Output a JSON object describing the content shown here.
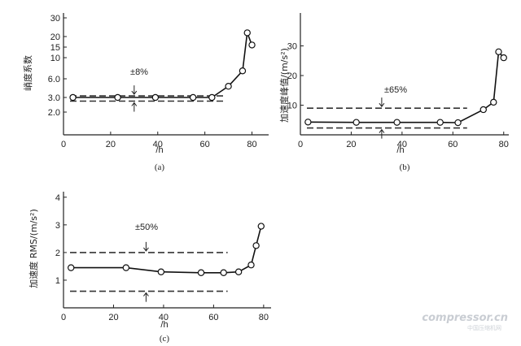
{
  "chart_data": [
    {
      "type": "line",
      "panel": "a",
      "caption": "(a)",
      "ylabel": "峭度系数",
      "xlabel": "/h",
      "xlim": [
        0,
        85
      ],
      "ylim": [
        0,
        30
      ],
      "xticks": [
        0,
        20,
        40,
        60,
        80
      ],
      "yticks": [
        2.0,
        3.0,
        6.0,
        10,
        15,
        20,
        30
      ],
      "ytick_labels": [
        "2.0",
        "3.0",
        "6.0",
        "10",
        "15",
        "20",
        "30"
      ],
      "series": [
        {
          "x": [
            4,
            23,
            39,
            55,
            63,
            70,
            76,
            78,
            80
          ],
          "y": [
            3.0,
            3.0,
            3.0,
            3.0,
            3.0,
            4.8,
            7.5,
            22,
            16
          ]
        }
      ],
      "bands": [
        3.25,
        2.75
      ],
      "annotation": "±8%",
      "arrow_x": 30
    },
    {
      "type": "line",
      "panel": "b",
      "caption": "(b)",
      "ylabel": "加速度峰值/(m/s²)",
      "xlabel": "/h",
      "xlim": [
        0,
        82
      ],
      "ylim": [
        0,
        40
      ],
      "xticks": [
        0,
        20,
        40,
        60,
        80
      ],
      "yticks": [
        10,
        20,
        30
      ],
      "ytick_labels": [
        "10",
        "20",
        "30"
      ],
      "series": [
        {
          "x": [
            3,
            22,
            38,
            55,
            62,
            72,
            76,
            78,
            80
          ],
          "y": [
            4.3,
            4.2,
            4.2,
            4.2,
            4.1,
            8.5,
            11,
            28,
            26
          ]
        }
      ],
      "bands": [
        9,
        2.3
      ],
      "annotation": "±65%",
      "arrow_x": 32
    },
    {
      "type": "line",
      "panel": "c",
      "caption": "(c)",
      "ylabel": "加速度 RMS/(m/s²)",
      "xlabel": "/h",
      "xlim": [
        0,
        82
      ],
      "ylim": [
        0,
        4.2
      ],
      "xticks": [
        0,
        20,
        40,
        60,
        80
      ],
      "yticks": [
        1,
        2,
        3,
        4
      ],
      "ytick_labels": [
        "1",
        "2",
        "3",
        "4"
      ],
      "series": [
        {
          "x": [
            3,
            25,
            39,
            55,
            64,
            70,
            75,
            77,
            79
          ],
          "y": [
            1.45,
            1.45,
            1.3,
            1.27,
            1.27,
            1.3,
            1.55,
            2.25,
            2.95
          ]
        }
      ],
      "bands": [
        2.0,
        0.6
      ],
      "annotation": "±50%",
      "arrow_x": 33
    }
  ],
  "watermark": {
    "text": "compressor.cn",
    "sub": "中国压缩机网"
  }
}
